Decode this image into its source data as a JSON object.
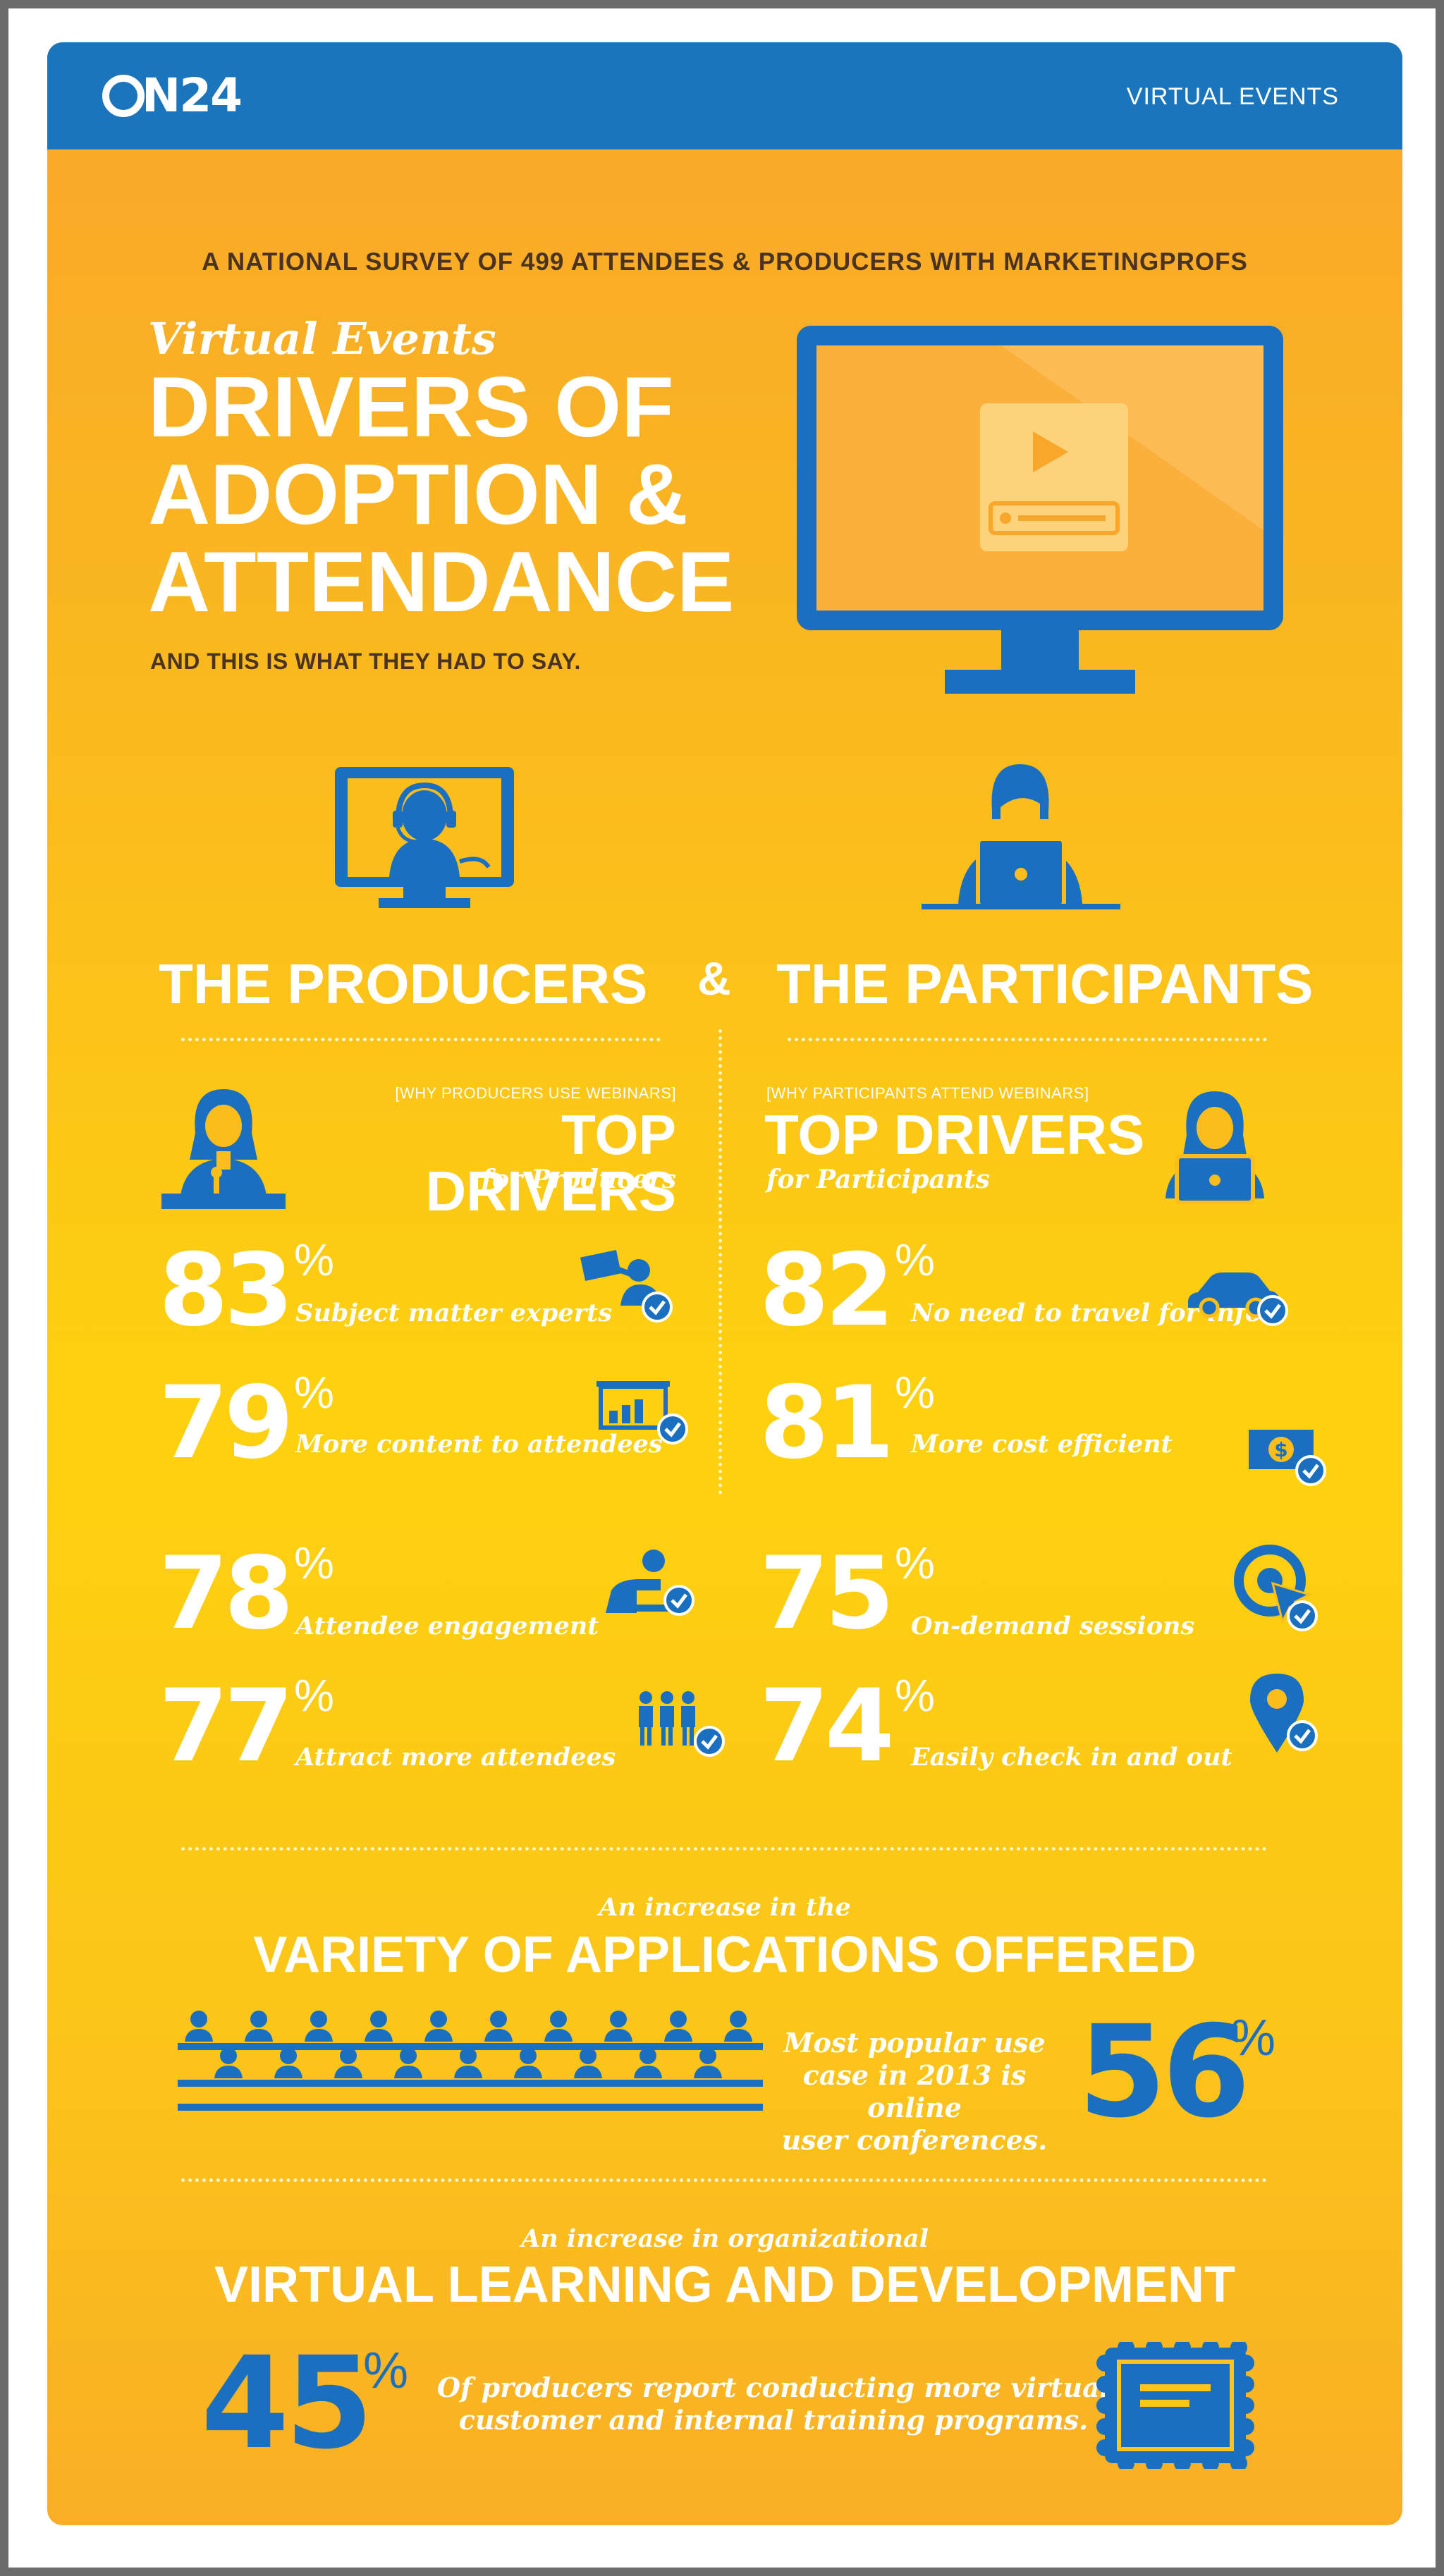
{
  "header": {
    "logo_text": "N24",
    "logo": "ON24",
    "right_label": "VIRTUAL EVENTS"
  },
  "intro": {
    "survey": "A NATIONAL SURVEY OF 499 ATTENDEES & PRODUCERS WITH MARKETINGPROFS",
    "script_title": "Virtual Events",
    "title_lines": [
      "DRIVERS OF",
      "ADOPTION &",
      "ATTENDANCE"
    ],
    "subtitle": "AND THIS IS WHAT THEY HAD TO SAY.",
    "monitor_icon": "video-monitor-icon"
  },
  "groups": {
    "producers": "THE PRODUCERS",
    "amp": "&",
    "participants": "THE PARTICIPANTS"
  },
  "producers": {
    "bracket": "[WHY PRODUCERS USE WEBINARS]",
    "title": "TOP DRIVERS",
    "subtitle": "for Producers",
    "items": [
      {
        "pct": "83",
        "label": "Subject matter experts",
        "icon": "expert-presenter-icon"
      },
      {
        "pct": "79",
        "label": "More content to attendees",
        "icon": "presentation-chart-icon"
      },
      {
        "pct": "78",
        "label": "Attendee engagement",
        "icon": "engagement-icon"
      },
      {
        "pct": "77",
        "label": "Attract more attendees",
        "icon": "people-group-icon"
      }
    ]
  },
  "participants": {
    "bracket": "[WHY PARTICIPANTS ATTEND WEBINARS]",
    "title": "TOP DRIVERS",
    "subtitle": "for Participants",
    "items": [
      {
        "pct": "82",
        "label": "No need to travel for info",
        "icon": "car-icon"
      },
      {
        "pct": "81",
        "label": "More cost efficient",
        "icon": "dollar-bill-icon"
      },
      {
        "pct": "75",
        "label": "On-demand sessions",
        "icon": "cursor-click-icon"
      },
      {
        "pct": "74",
        "label": "Easily check in and out",
        "icon": "location-pin-icon"
      }
    ]
  },
  "variety": {
    "intro": "An increase in the",
    "title": "VARIETY OF APPLICATIONS OFFERED",
    "text_lines": [
      "Most popular use",
      "case in 2013 is online",
      "user conferences."
    ],
    "pct": "56",
    "icon": "audience-crowd-icon"
  },
  "learning": {
    "intro": "An increase in organizational",
    "title": "VIRTUAL LEARNING AND DEVELOPMENT",
    "pct": "45",
    "text_lines": [
      "Of producers report conducting more virtual",
      "customer and internal training programs."
    ],
    "icon": "certificate-icon"
  },
  "pct_symbol": "%",
  "colors": {
    "blue": "#1a6fc0",
    "header_blue": "#1a75bc",
    "orange": "#f8a72a",
    "yellow": "#fdd10f"
  }
}
